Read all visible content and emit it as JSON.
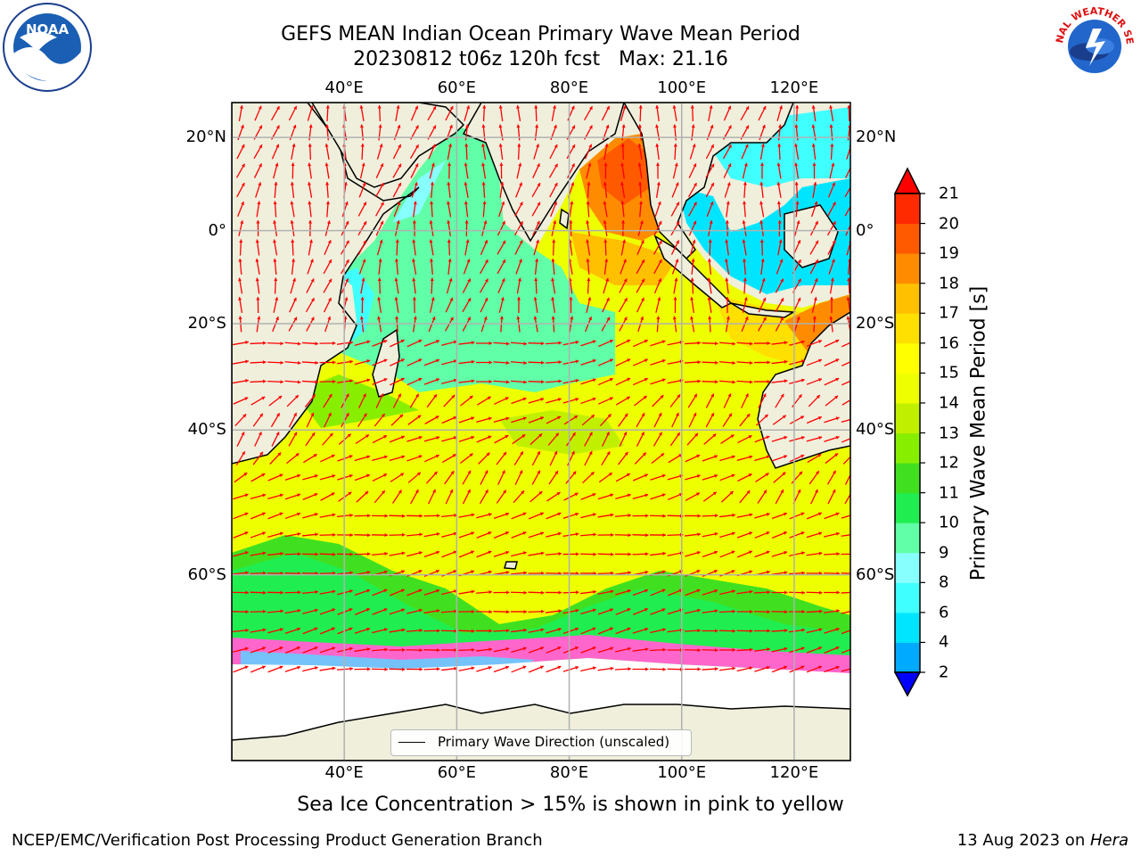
{
  "title": {
    "line1": "GEFS MEAN Indian Ocean Primary Wave Mean Period",
    "line2": "20230812 t06z 120h fcst   Max: 21.16"
  },
  "map": {
    "lon_ticks": [
      "40°E",
      "60°E",
      "80°E",
      "100°E",
      "120°E"
    ],
    "lat_ticks": [
      "20°N",
      "0°",
      "20°S",
      "40°S",
      "60°S"
    ],
    "lon_range": [
      20,
      130
    ],
    "lat_range": [
      -75,
      27
    ],
    "land_color": "#efefdc",
    "arrow_color": "#ff0000"
  },
  "legend": {
    "label": "Primary Wave Direction (unscaled)"
  },
  "colorbar": {
    "label": "Primary Wave Mean Period [s]",
    "ticks": [
      "2",
      "4",
      "6",
      "8",
      "9",
      "10",
      "11",
      "12",
      "13",
      "14",
      "15",
      "16",
      "17",
      "18",
      "19",
      "20",
      "21"
    ],
    "colors": [
      "#0050ff",
      "#00aaff",
      "#00e5ff",
      "#40ffff",
      "#88ffff",
      "#60ffa8",
      "#20ee50",
      "#40e020",
      "#88ee00",
      "#c0f000",
      "#eeff00",
      "#ffff00",
      "#ffe000",
      "#ffc000",
      "#ff8c00",
      "#ff5a00",
      "#ff2a00"
    ],
    "under_color": "#0000ff",
    "over_color": "#ff0000"
  },
  "footnote": "Sea Ice Concentration > 15% is shown in pink to yellow",
  "credits": {
    "left": "NCEP/EMC/Verification Post Processing Product Generation Branch",
    "right_date": "13 Aug 2023 on ",
    "right_machine": "Hera"
  },
  "logos": {
    "noaa_text": "NOAA",
    "nws_text": "NATIONAL WEATHER SERVICE"
  }
}
